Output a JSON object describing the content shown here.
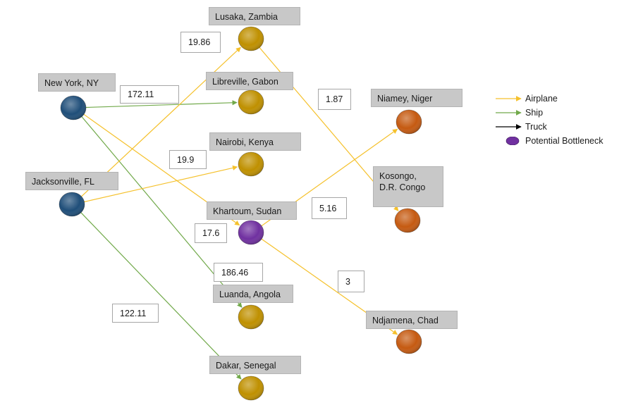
{
  "colors": {
    "airplane": "#f5c12c",
    "ship": "#71a94a",
    "truck": "#000000",
    "origin": "#1f4e79",
    "hub": "#bf9000",
    "destination": "#c55a11",
    "bottleneck": "#7030a0"
  },
  "nodes": {
    "new_york": {
      "label": "New York, NY",
      "kind": "origin"
    },
    "jacksonville": {
      "label": "Jacksonville, FL",
      "kind": "origin"
    },
    "lusaka": {
      "label": "Lusaka, Zambia",
      "kind": "hub"
    },
    "libreville": {
      "label": "Libreville, Gabon",
      "kind": "hub"
    },
    "nairobi": {
      "label": "Nairobi, Kenya",
      "kind": "hub"
    },
    "khartoum": {
      "label": "Khartoum, Sudan",
      "kind": "bottleneck"
    },
    "luanda": {
      "label": "Luanda, Angola",
      "kind": "hub"
    },
    "dakar": {
      "label": "Dakar, Senegal",
      "kind": "hub"
    },
    "niamey": {
      "label": "Niamey, Niger",
      "kind": "destination"
    },
    "kosongo": {
      "label": "Kosongo,\nD.R. Congo",
      "kind": "destination"
    },
    "ndjamena": {
      "label": "Ndjamena, Chad",
      "kind": "destination"
    }
  },
  "edges": [
    {
      "from": "new_york",
      "to": "libreville",
      "mode": "ship"
    },
    {
      "from": "new_york",
      "to": "khartoum",
      "mode": "airplane"
    },
    {
      "from": "new_york",
      "to": "luanda",
      "mode": "ship"
    },
    {
      "from": "jacksonville",
      "to": "lusaka",
      "mode": "airplane"
    },
    {
      "from": "jacksonville",
      "to": "nairobi",
      "mode": "airplane"
    },
    {
      "from": "jacksonville",
      "to": "dakar",
      "mode": "ship"
    },
    {
      "from": "lusaka",
      "to": "kosongo",
      "mode": "airplane"
    },
    {
      "from": "khartoum",
      "to": "niamey",
      "mode": "airplane"
    },
    {
      "from": "khartoum",
      "to": "ndjamena",
      "mode": "airplane"
    }
  ],
  "flow_values": {
    "lusaka": "19.86",
    "libreville": "172.11",
    "nairobi": "19.9",
    "khartoum_in": "17.6",
    "luanda": "186.46",
    "dakar": "122.11",
    "kosongo": "1.87",
    "niamey": "5.16",
    "ndjamena": "3"
  },
  "legend": {
    "airplane": "Airplane",
    "ship": "Ship",
    "truck": "Truck",
    "bottleneck": "Potential Bottleneck"
  }
}
